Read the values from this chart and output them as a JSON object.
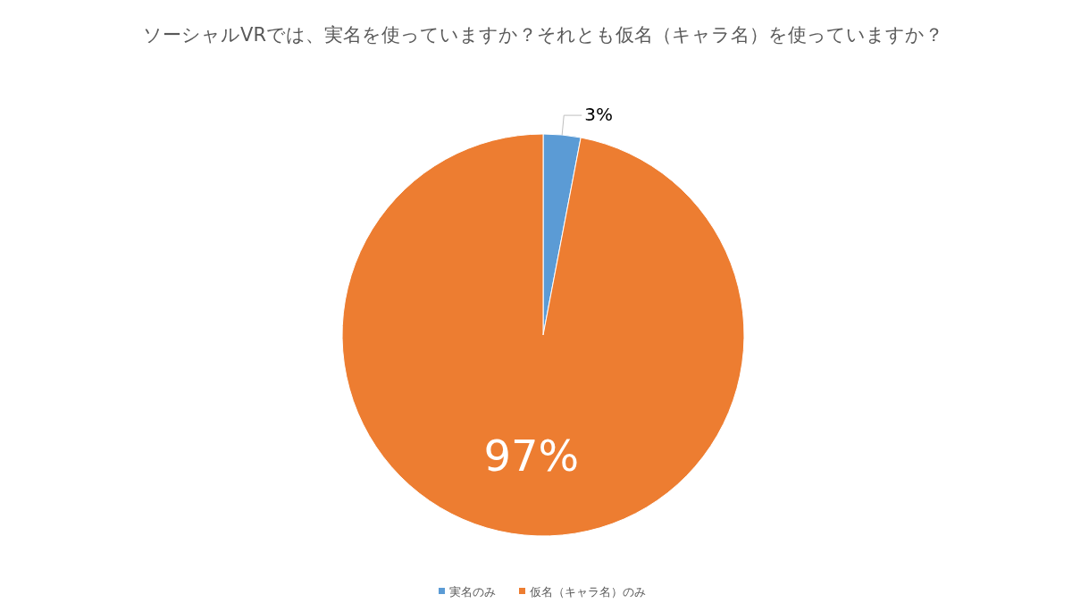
{
  "chart_data": {
    "type": "pie",
    "title": "ソーシャルVRでは、実名を使っていますか？それとも仮名（キャラ名）を使っていますか？",
    "categories": [
      "実名のみ",
      "仮名（キャラ名）のみ"
    ],
    "values": [
      3,
      97
    ],
    "colors": [
      "#5b9bd5",
      "#ed7d31"
    ],
    "value_labels": [
      "3%",
      "97%"
    ],
    "legend": "bottom"
  }
}
